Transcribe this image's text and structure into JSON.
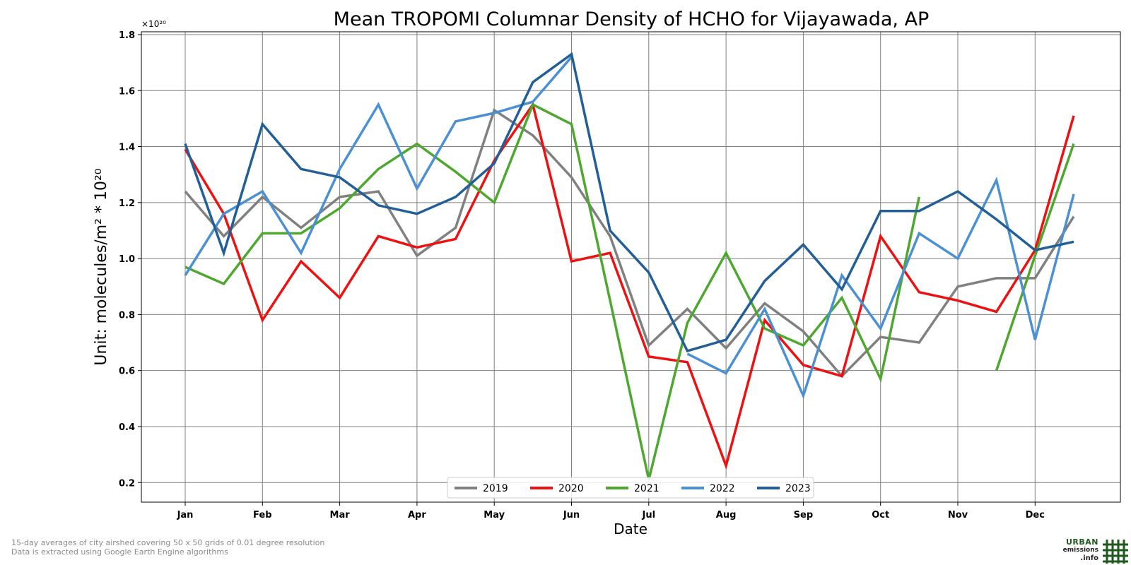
{
  "chart_data": {
    "type": "line",
    "title": "Mean TROPOMI Columnar Density of HCHO for Vijayawada, AP",
    "xlabel": "Date",
    "ylabel": "Unit: molecules/m² * 10²⁰",
    "y_offset_label": "×10²⁰",
    "ylim": [
      0.13,
      1.81
    ],
    "y_ticks": [
      0.2,
      0.4,
      0.6,
      0.8,
      1.0,
      1.2,
      1.4,
      1.6,
      1.8
    ],
    "y_tick_labels": [
      "0.2",
      "0.4",
      "0.6",
      "0.8",
      "1.0",
      "1.2",
      "1.4",
      "1.6",
      "1.8"
    ],
    "x_tick_labels": [
      "Jan",
      "Feb",
      "Mar",
      "Apr",
      "May",
      "Jun",
      "Jul",
      "Aug",
      "Sep",
      "Oct",
      "Nov",
      "Dec"
    ],
    "grid": true,
    "legend_position": "bottom-center",
    "series": [
      {
        "name": "2019",
        "color": "#808080",
        "values": [
          1.24,
          1.08,
          1.22,
          1.11,
          1.22,
          1.24,
          1.01,
          1.11,
          1.53,
          1.44,
          1.29,
          1.08,
          0.69,
          0.82,
          0.68,
          0.84,
          0.74,
          0.58,
          0.72,
          0.7,
          0.9,
          0.93,
          0.93,
          1.15
        ]
      },
      {
        "name": "2020",
        "color": "#ee1111",
        "values": [
          1.39,
          1.16,
          0.78,
          0.99,
          0.86,
          1.08,
          1.04,
          1.07,
          1.35,
          1.55,
          0.99,
          1.02,
          0.65,
          0.63,
          0.26,
          0.78,
          0.62,
          0.58,
          1.08,
          0.88,
          0.85,
          0.81,
          1.03,
          1.51
        ]
      },
      {
        "name": "2021",
        "color": "#4ea72e",
        "values": [
          0.97,
          0.91,
          1.09,
          1.09,
          1.18,
          1.32,
          1.41,
          1.31,
          1.2,
          1.55,
          1.48,
          0.85,
          0.21,
          0.77,
          1.02,
          0.75,
          0.69,
          0.86,
          0.57,
          1.22,
          null,
          0.6,
          1.01,
          1.41
        ]
      },
      {
        "name": "2022",
        "color": "#4b90d3",
        "values": [
          0.94,
          1.16,
          1.24,
          1.02,
          1.32,
          1.55,
          1.25,
          1.49,
          1.52,
          1.56,
          1.72,
          null,
          null,
          0.66,
          0.59,
          0.82,
          0.51,
          0.94,
          0.75,
          1.09,
          1.0,
          1.28,
          0.71,
          1.23
        ]
      },
      {
        "name": "2023",
        "color": "#235f97",
        "values": [
          1.41,
          1.02,
          1.48,
          1.32,
          1.29,
          1.19,
          1.16,
          1.22,
          1.34,
          1.63,
          1.73,
          1.1,
          0.95,
          0.67,
          0.71,
          0.92,
          1.05,
          0.89,
          1.17,
          1.17,
          1.24,
          1.14,
          1.03,
          1.06
        ]
      }
    ]
  },
  "footnotes": [
    "15-day averages of city airshed covering 50 x 50 grids of 0.01 degree resolution",
    "Data is extracted using Google Earth Engine algorithms"
  ],
  "logo": {
    "line1": "URBAN",
    "line2": "emissions",
    "line3": ".info",
    "color": "#1f5a1f"
  }
}
